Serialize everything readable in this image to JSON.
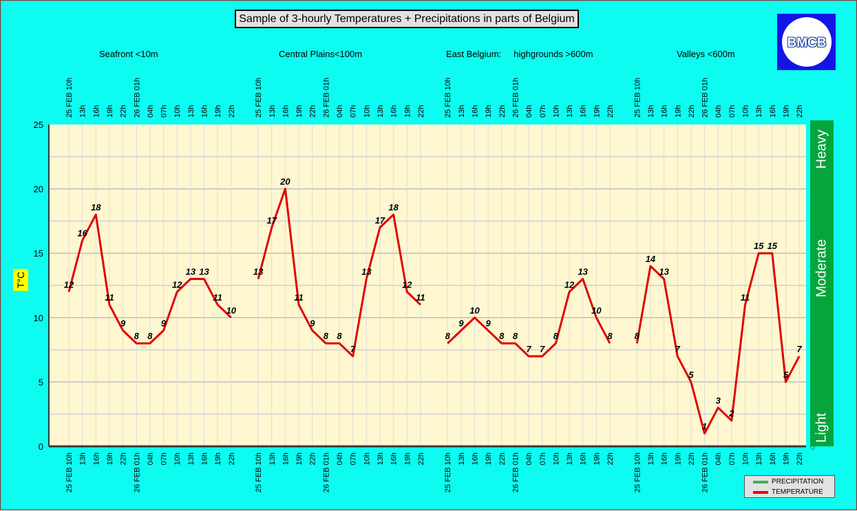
{
  "chart_data": {
    "type": "line",
    "title": "Sample of 3-hourly Temperatures + Precipitations in parts of Belgium",
    "ylabel": "T°C",
    "ylim": [
      0,
      25
    ],
    "yticks": [
      0,
      5,
      10,
      15,
      20,
      25
    ],
    "grid": true,
    "legend_position": "bottom-right",
    "regions": [
      "Seafront <10m",
      "Central Plains<100m",
      "East Belgium:     highgrounds >600m",
      "Valleys <600m"
    ],
    "x": [
      "25 FEB 10h",
      "13h",
      "16h",
      "19h",
      "22h",
      "26 FEB 01h",
      "04h",
      "07h",
      "10h",
      "13h",
      "16h",
      "19h",
      "22h"
    ],
    "series": [
      {
        "name": "TEMPERATURE",
        "segments": [
          [
            12,
            16,
            18,
            11,
            9,
            8,
            8,
            9,
            12,
            13,
            13,
            11,
            10
          ],
          [
            13,
            17,
            20,
            11,
            9,
            8,
            8,
            7,
            13,
            17,
            18,
            12,
            11
          ],
          [
            8,
            9,
            10,
            9,
            8,
            8,
            7,
            7,
            8,
            12,
            13,
            10,
            8
          ],
          [
            8,
            14,
            13,
            7,
            5,
            1,
            3,
            2,
            11,
            15,
            15,
            5,
            7
          ]
        ]
      }
    ],
    "precipitation": {
      "name": "PRECIPITATION",
      "levels": [
        "Light",
        "Moderate",
        "Heavy"
      ],
      "zero_label": "0"
    },
    "colors": {
      "temperature": "#e00000",
      "precipitation": "#06a53c",
      "plot_bg": "#fff7d0",
      "page_bg": "#0dfbf0"
    }
  },
  "logo": {
    "text": "BMCB"
  }
}
